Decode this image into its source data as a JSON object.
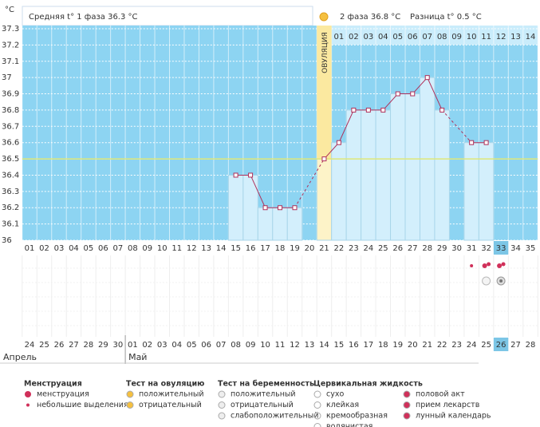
{
  "chart_data": {
    "type": "bbt",
    "y_unit": "°C",
    "phase1_text": "Средняя t° 1 фаза 36.3 °C",
    "phase2_text": "2 фаза 36.8 °C",
    "diff_text": "Разница t° 0.5 °C",
    "ovulation_label": "ОВУЛЯЦИЯ",
    "ovulation_day": 21,
    "coverline": 36.5,
    "today_day": 33,
    "ylim": [
      36,
      37.3
    ],
    "yticks": [
      36,
      36.1,
      36.2,
      36.3,
      36.4,
      36.5,
      36.6,
      36.7,
      36.8,
      36.9,
      37,
      37.1,
      37.2,
      37.3
    ],
    "categories": [
      "01",
      "02",
      "03",
      "04",
      "05",
      "06",
      "07",
      "08",
      "09",
      "10",
      "11",
      "12",
      "13",
      "14",
      "15",
      "16",
      "17",
      "18",
      "19",
      "20",
      "21",
      "22",
      "23",
      "24",
      "25",
      "26",
      "27",
      "28",
      "29",
      "30",
      "31",
      "32",
      "33",
      "34",
      "35"
    ],
    "phase2_days": [
      "01",
      "02",
      "03",
      "04",
      "05",
      "06",
      "07",
      "08",
      "09",
      "10",
      "11",
      "12",
      "13",
      "14"
    ],
    "values": [
      null,
      null,
      null,
      null,
      null,
      null,
      null,
      null,
      null,
      null,
      null,
      null,
      null,
      null,
      36.4,
      36.4,
      36.2,
      36.2,
      36.2,
      null,
      36.5,
      36.6,
      36.8,
      36.8,
      36.8,
      36.9,
      36.9,
      37,
      36.8,
      null,
      36.6,
      36.6,
      null,
      null,
      null
    ],
    "dates": [
      {
        "text": "24"
      },
      {
        "text": "25"
      },
      {
        "text": "26"
      },
      {
        "text": "27",
        "weekend": true
      },
      {
        "text": "28",
        "weekend": true
      },
      {
        "text": "29"
      },
      {
        "text": "30"
      },
      {
        "text": "01"
      },
      {
        "text": "02"
      },
      {
        "text": "03"
      },
      {
        "text": "04",
        "weekend": true
      },
      {
        "text": "05",
        "weekend": true
      },
      {
        "text": "06"
      },
      {
        "text": "07"
      },
      {
        "text": "08"
      },
      {
        "text": "09"
      },
      {
        "text": "10"
      },
      {
        "text": "11",
        "weekend": true
      },
      {
        "text": "12",
        "weekend": true
      },
      {
        "text": "13"
      },
      {
        "text": "14"
      },
      {
        "text": "15"
      },
      {
        "text": "16"
      },
      {
        "text": "17"
      },
      {
        "text": "18",
        "weekend": true
      },
      {
        "text": "19",
        "weekend": true
      },
      {
        "text": "20"
      },
      {
        "text": "21"
      },
      {
        "text": "22"
      },
      {
        "text": "23"
      },
      {
        "text": "24"
      },
      {
        "text": "25",
        "weekend": true
      },
      {
        "text": "26"
      },
      {
        "text": "27"
      },
      {
        "text": "28"
      }
    ],
    "months": [
      {
        "name": "Апрель",
        "first_day": 1
      },
      {
        "name": "Май",
        "first_day": 8
      }
    ],
    "symbols": [
      {
        "day": 31,
        "kind": "spotting"
      },
      {
        "day": 32,
        "kind": "menstruation"
      },
      {
        "day": 33,
        "kind": "menstruation"
      },
      {
        "day": 32,
        "kind": "preg-negative"
      },
      {
        "day": 33,
        "kind": "ovu-negative"
      }
    ],
    "legend": [
      {
        "title": "Менструация",
        "items": [
          "менструация",
          "небольшие выделения"
        ]
      },
      {
        "title": "Тест на овуляцию",
        "items": [
          "положительный",
          "отрицательный"
        ]
      },
      {
        "title": "Тест на беременность",
        "items": [
          "положительный",
          "отрицательный",
          "слабоположительный"
        ]
      },
      {
        "title": "Цервикальная жидкость",
        "items": [
          "сухо",
          "клейкая",
          "кремообразная",
          "водянистая"
        ]
      },
      {
        "title": null,
        "items": [
          "половой акт",
          "прием лекарств",
          "лунный календарь"
        ]
      }
    ]
  }
}
